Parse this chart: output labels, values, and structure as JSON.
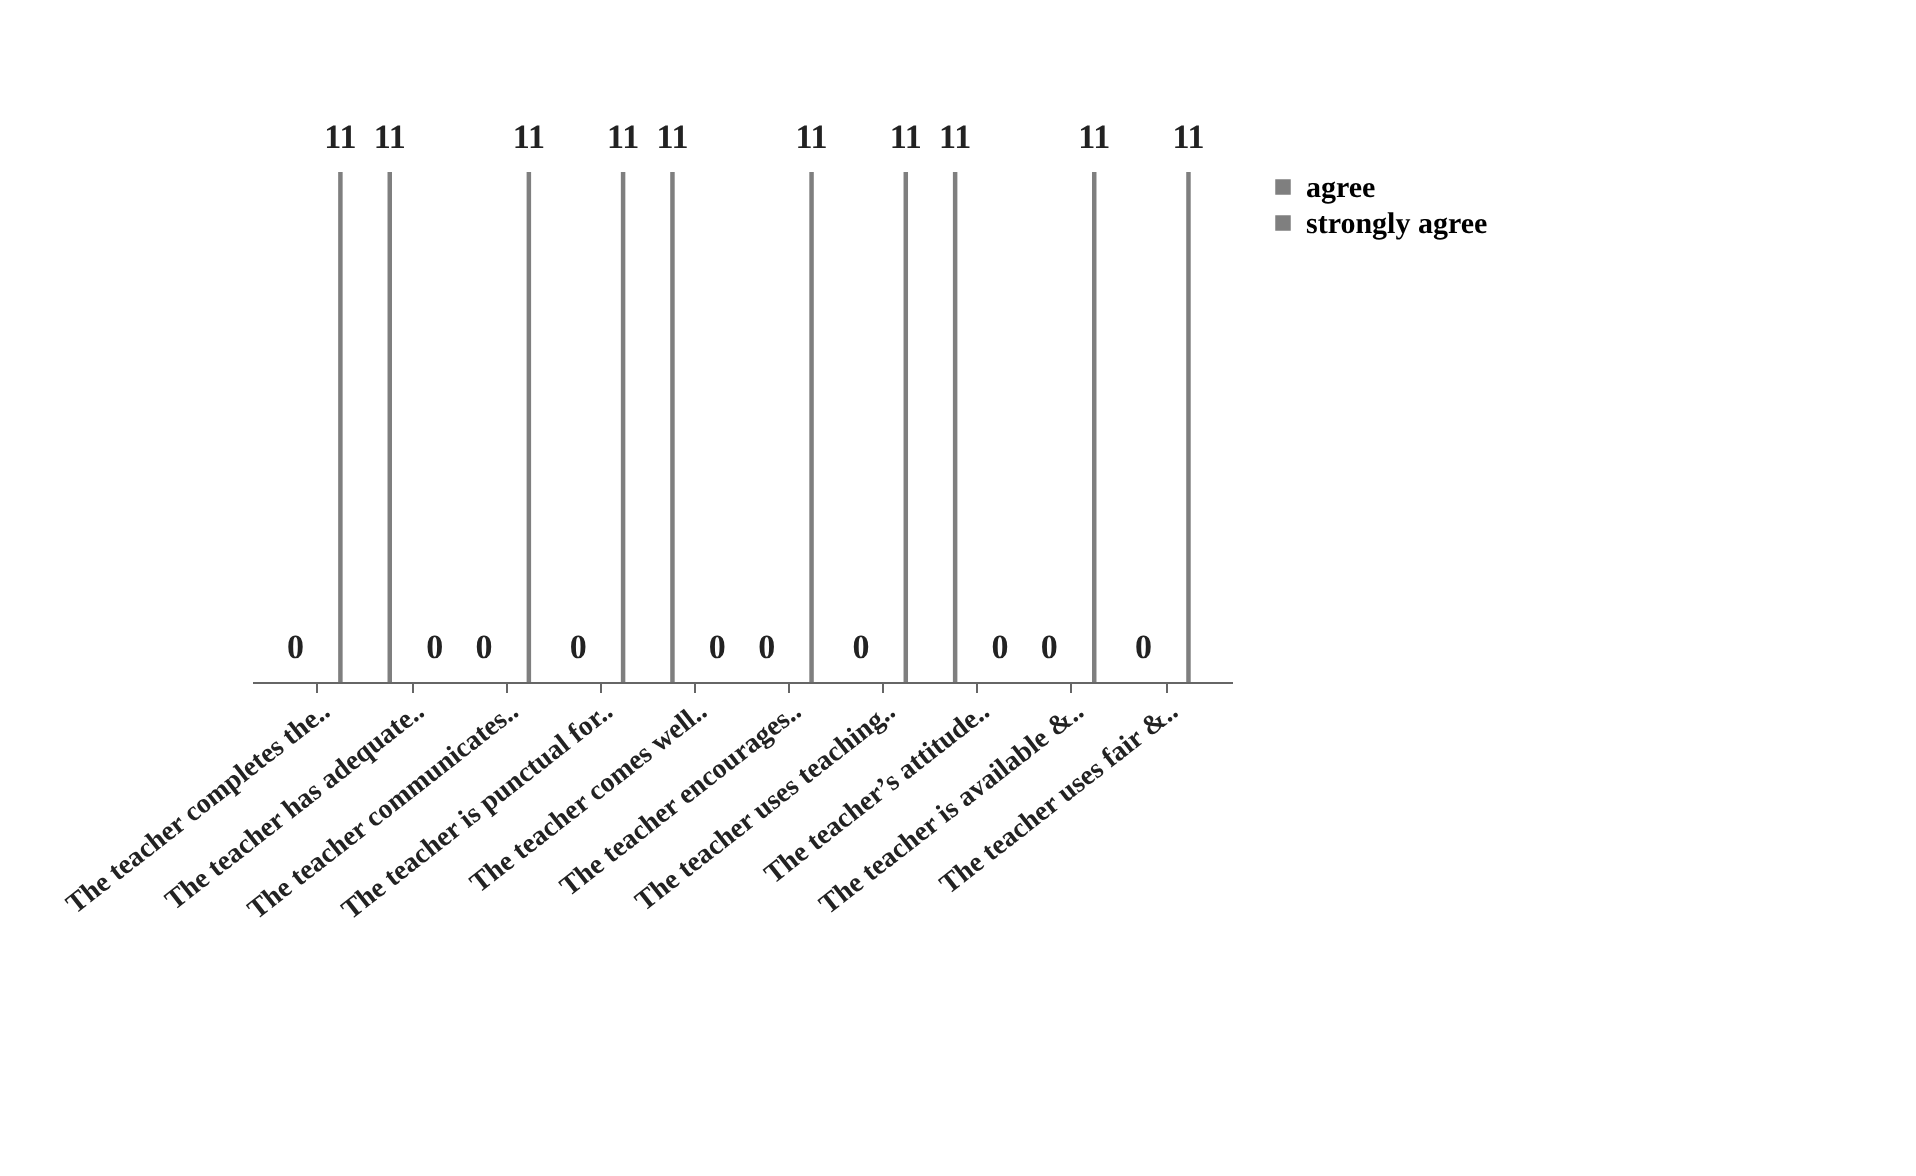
{
  "chart_data": {
    "type": "bar",
    "categories": [
      "The teacher completes the..",
      "The teacher has adequate..",
      "The teacher communicates..",
      "The teacher is punctual for..",
      "The teacher comes well..",
      "The teacher encourages..",
      "The teacher uses teaching..",
      "The teacher’s attitude..",
      "The teacher is available &..",
      "The teacher uses fair &.."
    ],
    "series": [
      {
        "name": "agree",
        "color": "#7f7f7f",
        "values": [
          0,
          11,
          0,
          0,
          11,
          0,
          0,
          11,
          0,
          0
        ]
      },
      {
        "name": "strongly agree",
        "color": "#7f7f7f",
        "values": [
          11,
          0,
          11,
          11,
          0,
          11,
          11,
          0,
          11,
          11
        ]
      }
    ],
    "data_labels": true,
    "legend": "right",
    "grid": false
  }
}
